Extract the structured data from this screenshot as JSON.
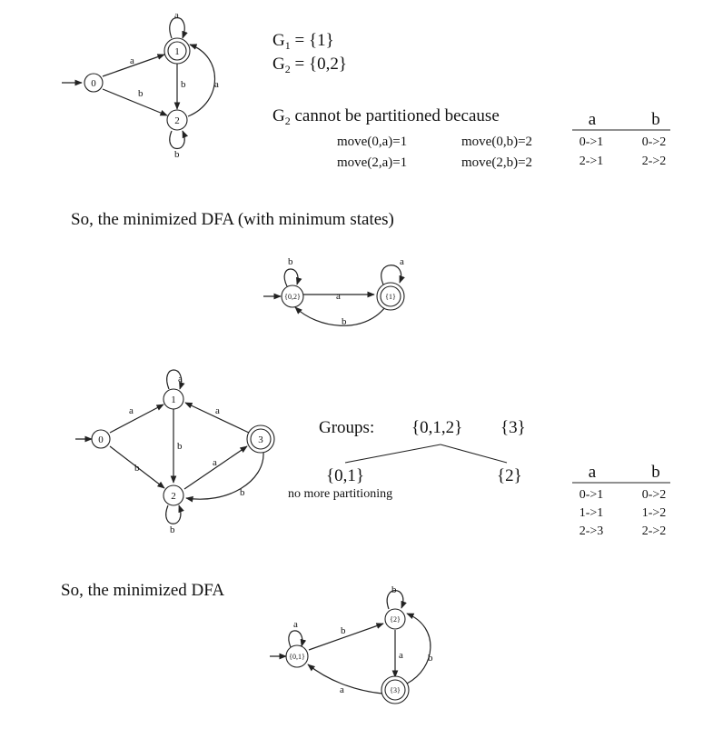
{
  "dfa1": {
    "states": [
      "0",
      "1",
      "2"
    ],
    "edge_labels": {
      "e01": "a",
      "e02": "b",
      "e12": "b",
      "e21": "a",
      "self1": "a",
      "self2": "b"
    }
  },
  "partition1": {
    "g1_prefix": "G",
    "g1_sub": "1",
    "g1_value": " = {1}",
    "g2_prefix": "G",
    "g2_sub": "2",
    "g2_value": " = {0,2}",
    "cannot_prefix": "G",
    "cannot_sub": "2",
    "cannot_text": " cannot be partitioned because",
    "moves": [
      "move(0,a)=1",
      "move(0,b)=2",
      "move(2,a)=1",
      "move(2,b)=2"
    ],
    "table": {
      "headers": [
        "a",
        "b"
      ],
      "rows": [
        [
          "0->1",
          "0->2"
        ],
        [
          "2->1",
          "2->2"
        ]
      ]
    }
  },
  "caption1": "So, the minimized DFA (with minimum states)",
  "mindfa1": {
    "states": [
      "{0,2}",
      "{1}"
    ],
    "edge_labels": {
      "forward": "a",
      "back": "b",
      "self_a": "b",
      "self_b": "a"
    }
  },
  "dfa2": {
    "states": [
      "0",
      "1",
      "2",
      "3"
    ],
    "edge_labels": {
      "e01": "a",
      "e02": "b",
      "e12": "b",
      "e31": "a",
      "e23": "a",
      "e32": "b",
      "self1": "a",
      "self2": "b"
    }
  },
  "partition2": {
    "groups_label": "Groups:",
    "group_a": "{0,1,2}",
    "group_b": "{3}",
    "split_left": "{0,1}",
    "split_right": "{2}",
    "note": "no more partitioning",
    "table": {
      "headers": [
        "a",
        "b"
      ],
      "rows": [
        [
          "0->1",
          "0->2"
        ],
        [
          "1->1",
          "1->2"
        ],
        [
          "2->3",
          "2->2"
        ]
      ]
    }
  },
  "caption2": "So, the minimized DFA",
  "mindfa2": {
    "states": [
      "{0,1}",
      "{2}",
      "{3}"
    ],
    "edge_labels": {
      "e01_2": "b",
      "e2_3": "a",
      "e3_2": "b",
      "e3_01": "a",
      "self01": "a",
      "self2": "b"
    }
  }
}
